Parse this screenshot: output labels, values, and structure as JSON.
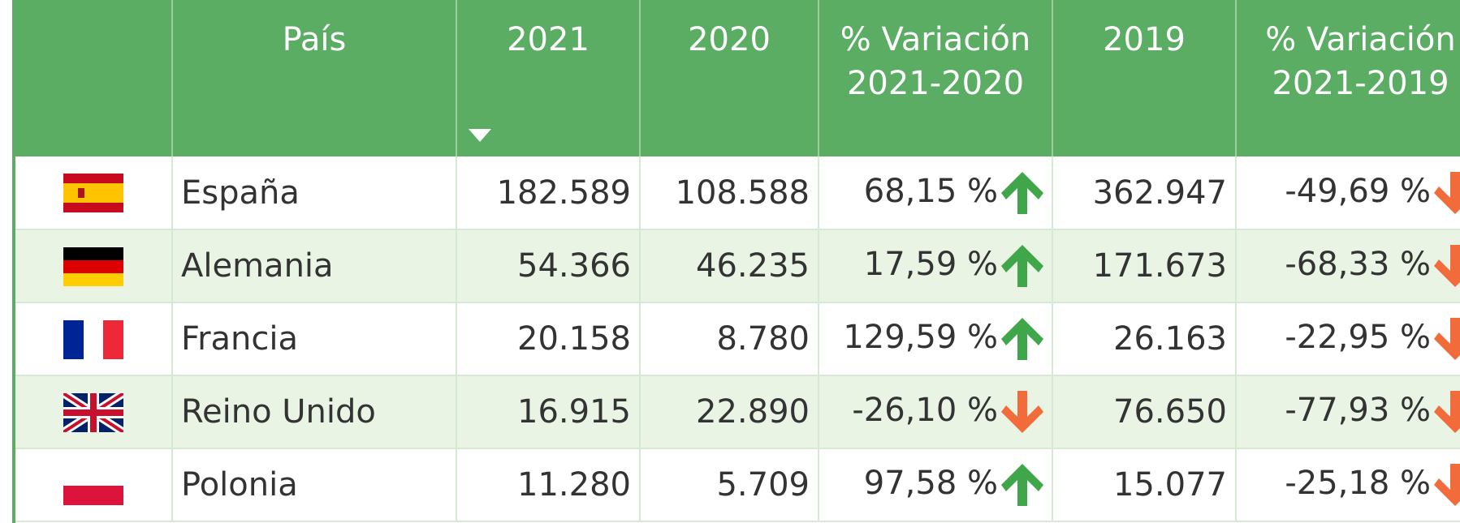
{
  "table": {
    "headers": [
      "País",
      "2021",
      "2020",
      "% Variación\n2021-2020",
      "2019",
      "% Variación\n2021-2019"
    ],
    "rows": [
      [
        "España",
        "182.589",
        "108.588",
        "68,15 %",
        "362.947",
        "-49,69 %"
      ],
      [
        "Alemania",
        "54.366",
        "46.235",
        "17,59 %",
        "171.673",
        "-68,33 %"
      ],
      [
        "Francia",
        "20.158",
        "8.780",
        "129,59 %",
        "26.163",
        "-22,95 %"
      ],
      [
        "Reino Unido",
        "16.915",
        "22.890",
        "-26,10 %",
        "76.650",
        "-77,93 %"
      ],
      [
        "Polonia",
        "11.280",
        "5.709",
        "97,58 %",
        "15.077",
        "-25,18 %"
      ]
    ]
  }
}
